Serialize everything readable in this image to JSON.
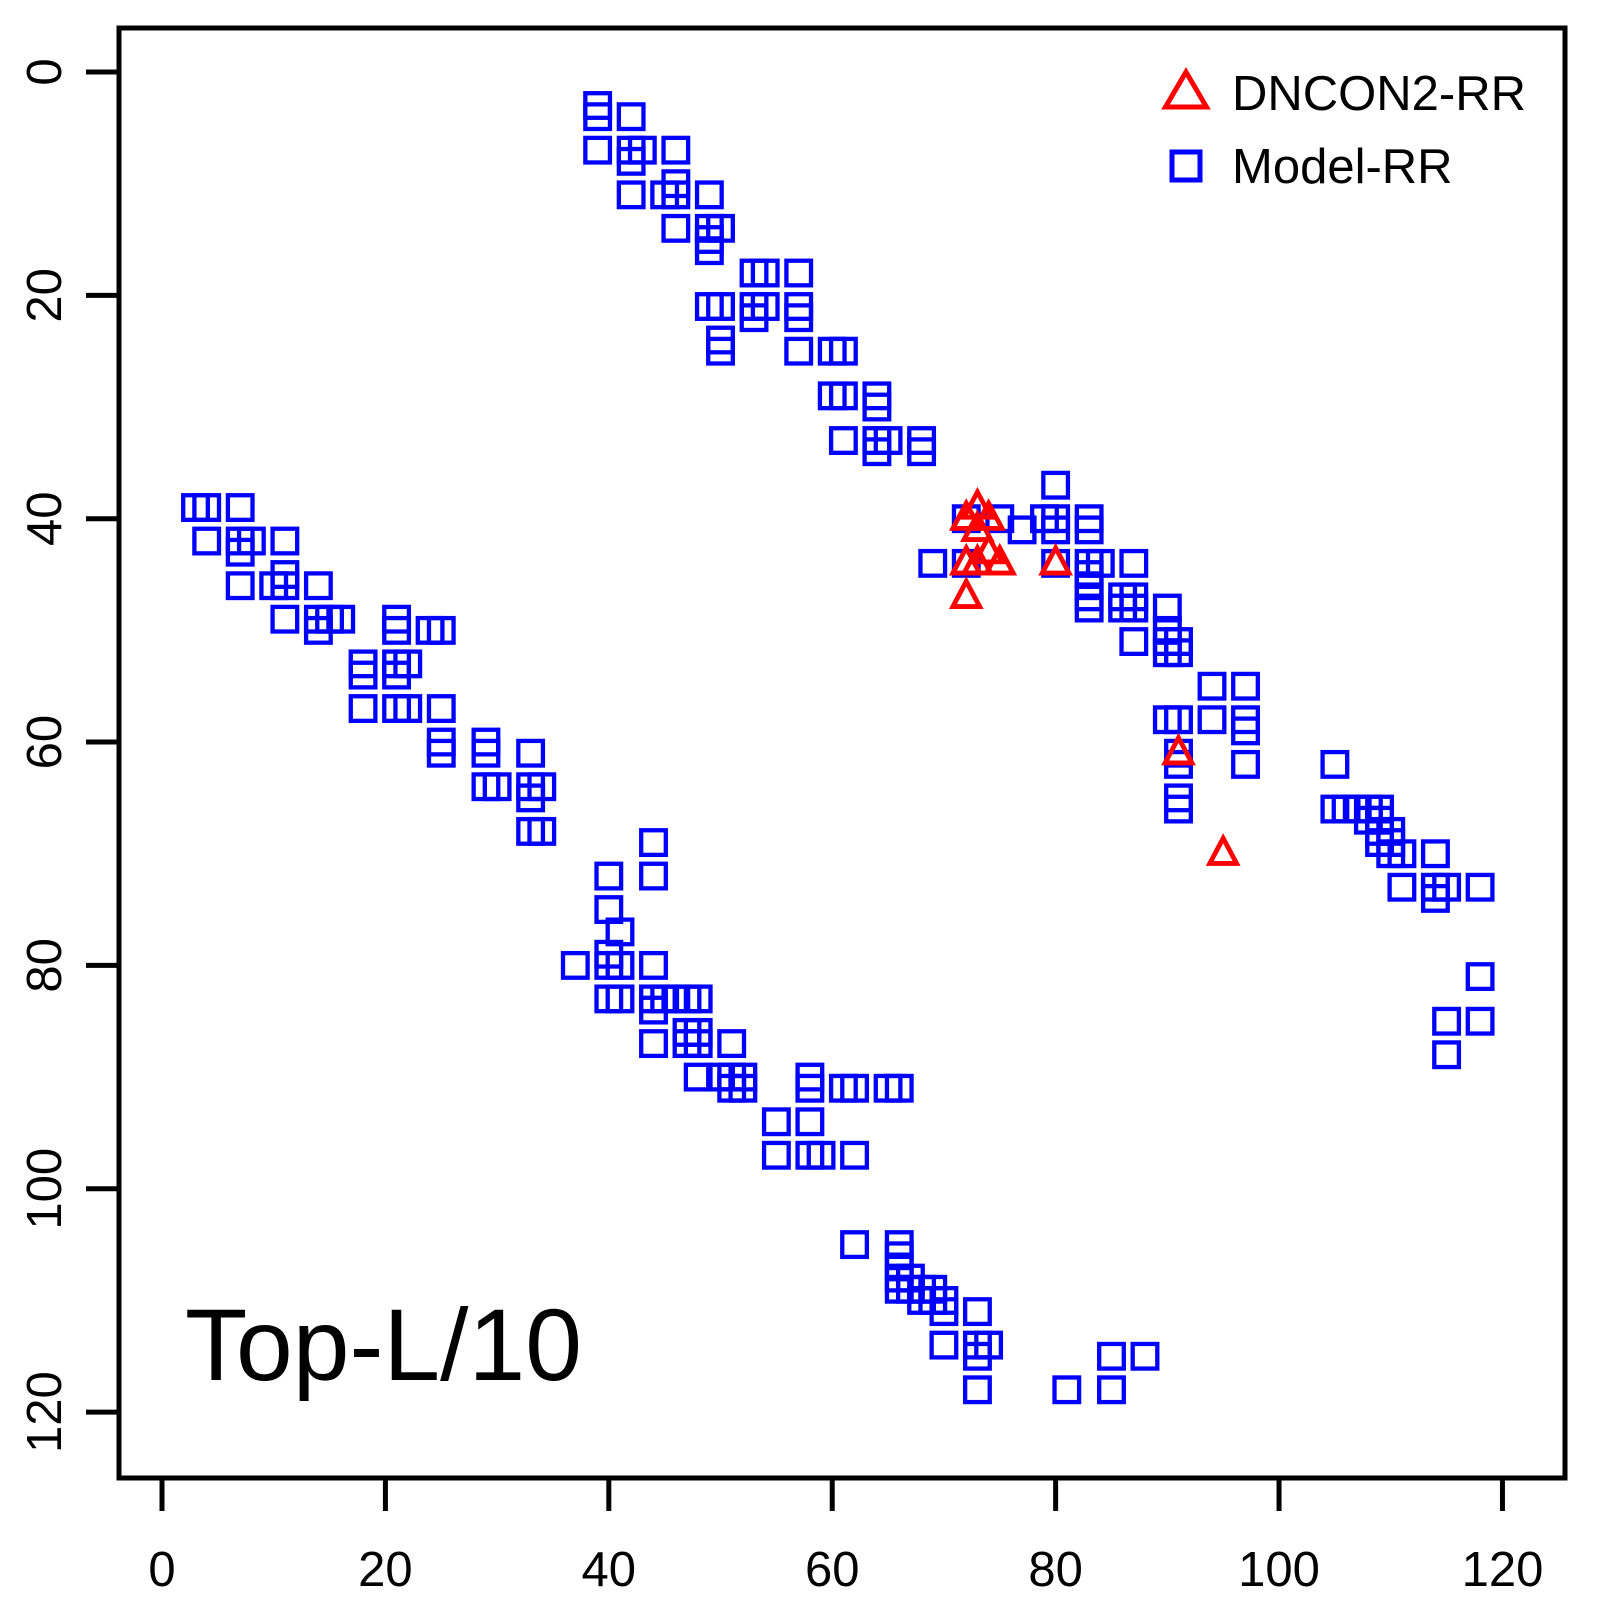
{
  "chart_data": {
    "type": "scatter",
    "title": "",
    "xlabel": "",
    "ylabel": "",
    "annotation": "Top-L/10",
    "background_color": "#FFFFFF",
    "axis_color": "#000000",
    "x_ticks": [
      0,
      20,
      40,
      60,
      80,
      100,
      120
    ],
    "y_ticks": [
      0,
      20,
      40,
      60,
      80,
      100,
      120
    ],
    "x_tick_labels": [
      "0",
      "20",
      "40",
      "60",
      "80",
      "100",
      "120"
    ],
    "y_tick_labels": [
      "0",
      "20",
      "40",
      "60",
      "80",
      "100",
      "120"
    ],
    "xlim": [
      -3.85,
      125.6
    ],
    "ylim": [
      -3.94,
      125.9
    ],
    "y_axis_inverted": true,
    "grid": false,
    "legend_position": "topright",
    "legend": [
      {
        "label": "DNCON2-RR",
        "marker": "triangle-icon",
        "color": "#FF0000"
      },
      {
        "label": "Model-RR",
        "marker": "square-icon",
        "color": "#0000FF"
      }
    ],
    "series": [
      {
        "name": "Model-RR",
        "marker": "square",
        "color": "#0000FF",
        "points": [
          [
            39,
            3
          ],
          [
            39,
            4
          ],
          [
            42,
            4
          ],
          [
            39,
            7
          ],
          [
            42,
            7
          ],
          [
            43,
            7
          ],
          [
            46,
            7
          ],
          [
            42,
            8
          ],
          [
            46,
            10
          ],
          [
            42,
            11
          ],
          [
            45,
            11
          ],
          [
            46,
            11
          ],
          [
            49,
            11
          ],
          [
            46,
            14
          ],
          [
            49,
            14
          ],
          [
            50,
            14
          ],
          [
            49,
            15
          ],
          [
            49,
            16
          ],
          [
            53,
            18
          ],
          [
            54,
            18
          ],
          [
            57,
            18
          ],
          [
            49,
            21
          ],
          [
            50,
            21
          ],
          [
            53,
            21
          ],
          [
            54,
            21
          ],
          [
            57,
            21
          ],
          [
            53,
            22
          ],
          [
            57,
            22
          ],
          [
            50,
            24
          ],
          [
            50,
            25
          ],
          [
            57,
            25
          ],
          [
            60,
            25
          ],
          [
            61,
            25
          ],
          [
            60,
            29
          ],
          [
            61,
            29
          ],
          [
            64,
            29
          ],
          [
            64,
            30
          ],
          [
            61,
            33
          ],
          [
            64,
            33
          ],
          [
            65,
            33
          ],
          [
            64,
            34
          ],
          [
            68,
            33
          ],
          [
            68,
            34
          ],
          [
            3,
            39
          ],
          [
            4,
            39
          ],
          [
            4,
            42
          ],
          [
            7,
            39
          ],
          [
            7,
            42
          ],
          [
            7,
            43
          ],
          [
            7,
            46
          ],
          [
            8,
            42
          ],
          [
            10,
            46
          ],
          [
            11,
            42
          ],
          [
            11,
            45
          ],
          [
            11,
            46
          ],
          [
            11,
            49
          ],
          [
            14,
            46
          ],
          [
            14,
            49
          ],
          [
            14,
            50
          ],
          [
            15,
            49
          ],
          [
            16,
            49
          ],
          [
            18,
            53
          ],
          [
            18,
            54
          ],
          [
            18,
            57
          ],
          [
            21,
            49
          ],
          [
            21,
            50
          ],
          [
            21,
            53
          ],
          [
            21,
            54
          ],
          [
            21,
            57
          ],
          [
            22,
            53
          ],
          [
            22,
            57
          ],
          [
            24,
            50
          ],
          [
            25,
            50
          ],
          [
            25,
            57
          ],
          [
            25,
            60
          ],
          [
            25,
            61
          ],
          [
            29,
            60
          ],
          [
            29,
            61
          ],
          [
            29,
            64
          ],
          [
            30,
            64
          ],
          [
            33,
            61
          ],
          [
            33,
            64
          ],
          [
            33,
            65
          ],
          [
            34,
            64
          ],
          [
            33,
            68
          ],
          [
            34,
            68
          ],
          [
            80,
            37
          ],
          [
            37,
            80
          ],
          [
            72,
            40
          ],
          [
            75,
            40
          ],
          [
            79,
            40
          ],
          [
            80,
            40
          ],
          [
            83,
            40
          ],
          [
            77,
            41
          ],
          [
            80,
            41
          ],
          [
            83,
            41
          ],
          [
            40,
            72
          ],
          [
            40,
            75
          ],
          [
            40,
            79
          ],
          [
            40,
            80
          ],
          [
            40,
            83
          ],
          [
            41,
            77
          ],
          [
            41,
            80
          ],
          [
            41,
            83
          ],
          [
            69,
            44
          ],
          [
            72,
            44
          ],
          [
            80,
            44
          ],
          [
            84,
            44
          ],
          [
            87,
            44
          ],
          [
            44,
            69
          ],
          [
            44,
            72
          ],
          [
            44,
            80
          ],
          [
            44,
            84
          ],
          [
            44,
            87
          ],
          [
            83,
            44
          ],
          [
            83,
            45
          ],
          [
            83,
            46
          ],
          [
            83,
            47
          ],
          [
            83,
            48
          ],
          [
            44,
            83
          ],
          [
            45,
            83
          ],
          [
            46,
            83
          ],
          [
            47,
            83
          ],
          [
            48,
            83
          ],
          [
            86,
            47
          ],
          [
            87,
            47
          ],
          [
            86,
            48
          ],
          [
            87,
            48
          ],
          [
            47,
            86
          ],
          [
            47,
            87
          ],
          [
            48,
            86
          ],
          [
            48,
            87
          ],
          [
            87,
            51
          ],
          [
            51,
            87
          ],
          [
            90,
            48
          ],
          [
            90,
            50
          ],
          [
            90,
            51
          ],
          [
            91,
            51
          ],
          [
            90,
            52
          ],
          [
            91,
            52
          ],
          [
            48,
            90
          ],
          [
            50,
            90
          ],
          [
            51,
            90
          ],
          [
            52,
            90
          ],
          [
            51,
            91
          ],
          [
            52,
            91
          ],
          [
            94,
            55
          ],
          [
            97,
            55
          ],
          [
            90,
            58
          ],
          [
            91,
            58
          ],
          [
            94,
            58
          ],
          [
            97,
            58
          ],
          [
            97,
            59
          ],
          [
            91,
            61
          ],
          [
            91,
            62
          ],
          [
            97,
            62
          ],
          [
            105,
            62
          ],
          [
            91,
            65
          ],
          [
            91,
            66
          ],
          [
            105,
            66
          ],
          [
            106,
            66
          ],
          [
            107,
            66
          ],
          [
            108,
            66
          ],
          [
            109,
            66
          ],
          [
            108,
            67
          ],
          [
            109,
            67
          ],
          [
            109,
            68
          ],
          [
            110,
            68
          ],
          [
            109,
            69
          ],
          [
            110,
            69
          ],
          [
            110,
            70
          ],
          [
            111,
            70
          ],
          [
            114,
            70
          ],
          [
            111,
            73
          ],
          [
            114,
            73
          ],
          [
            115,
            73
          ],
          [
            114,
            74
          ],
          [
            118,
            73
          ],
          [
            118,
            81
          ],
          [
            115,
            85
          ],
          [
            118,
            85
          ],
          [
            115,
            88
          ],
          [
            55,
            94
          ],
          [
            55,
            97
          ],
          [
            58,
            90
          ],
          [
            58,
            91
          ],
          [
            58,
            94
          ],
          [
            58,
            97
          ],
          [
            59,
            97
          ],
          [
            61,
            91
          ],
          [
            62,
            91
          ],
          [
            62,
            97
          ],
          [
            62,
            105
          ],
          [
            65,
            91
          ],
          [
            66,
            91
          ],
          [
            66,
            105
          ],
          [
            66,
            106
          ],
          [
            66,
            107
          ],
          [
            66,
            108
          ],
          [
            66,
            109
          ],
          [
            67,
            108
          ],
          [
            67,
            109
          ],
          [
            68,
            109
          ],
          [
            68,
            110
          ],
          [
            69,
            109
          ],
          [
            69,
            110
          ],
          [
            70,
            110
          ],
          [
            70,
            111
          ],
          [
            70,
            114
          ],
          [
            73,
            111
          ],
          [
            73,
            114
          ],
          [
            73,
            115
          ],
          [
            74,
            114
          ],
          [
            73,
            118
          ],
          [
            81,
            118
          ],
          [
            85,
            115
          ],
          [
            85,
            118
          ],
          [
            88,
            115
          ]
        ]
      },
      {
        "name": "DNCON2-RR",
        "marker": "triangle",
        "color": "#FF0000",
        "points": [
          [
            73,
            39
          ],
          [
            72,
            40
          ],
          [
            74,
            40
          ],
          [
            73,
            41
          ],
          [
            74,
            43
          ],
          [
            72,
            44
          ],
          [
            73,
            44
          ],
          [
            75,
            44
          ],
          [
            80,
            44
          ],
          [
            72,
            47
          ],
          [
            91,
            61
          ],
          [
            95,
            70
          ]
        ]
      }
    ]
  }
}
